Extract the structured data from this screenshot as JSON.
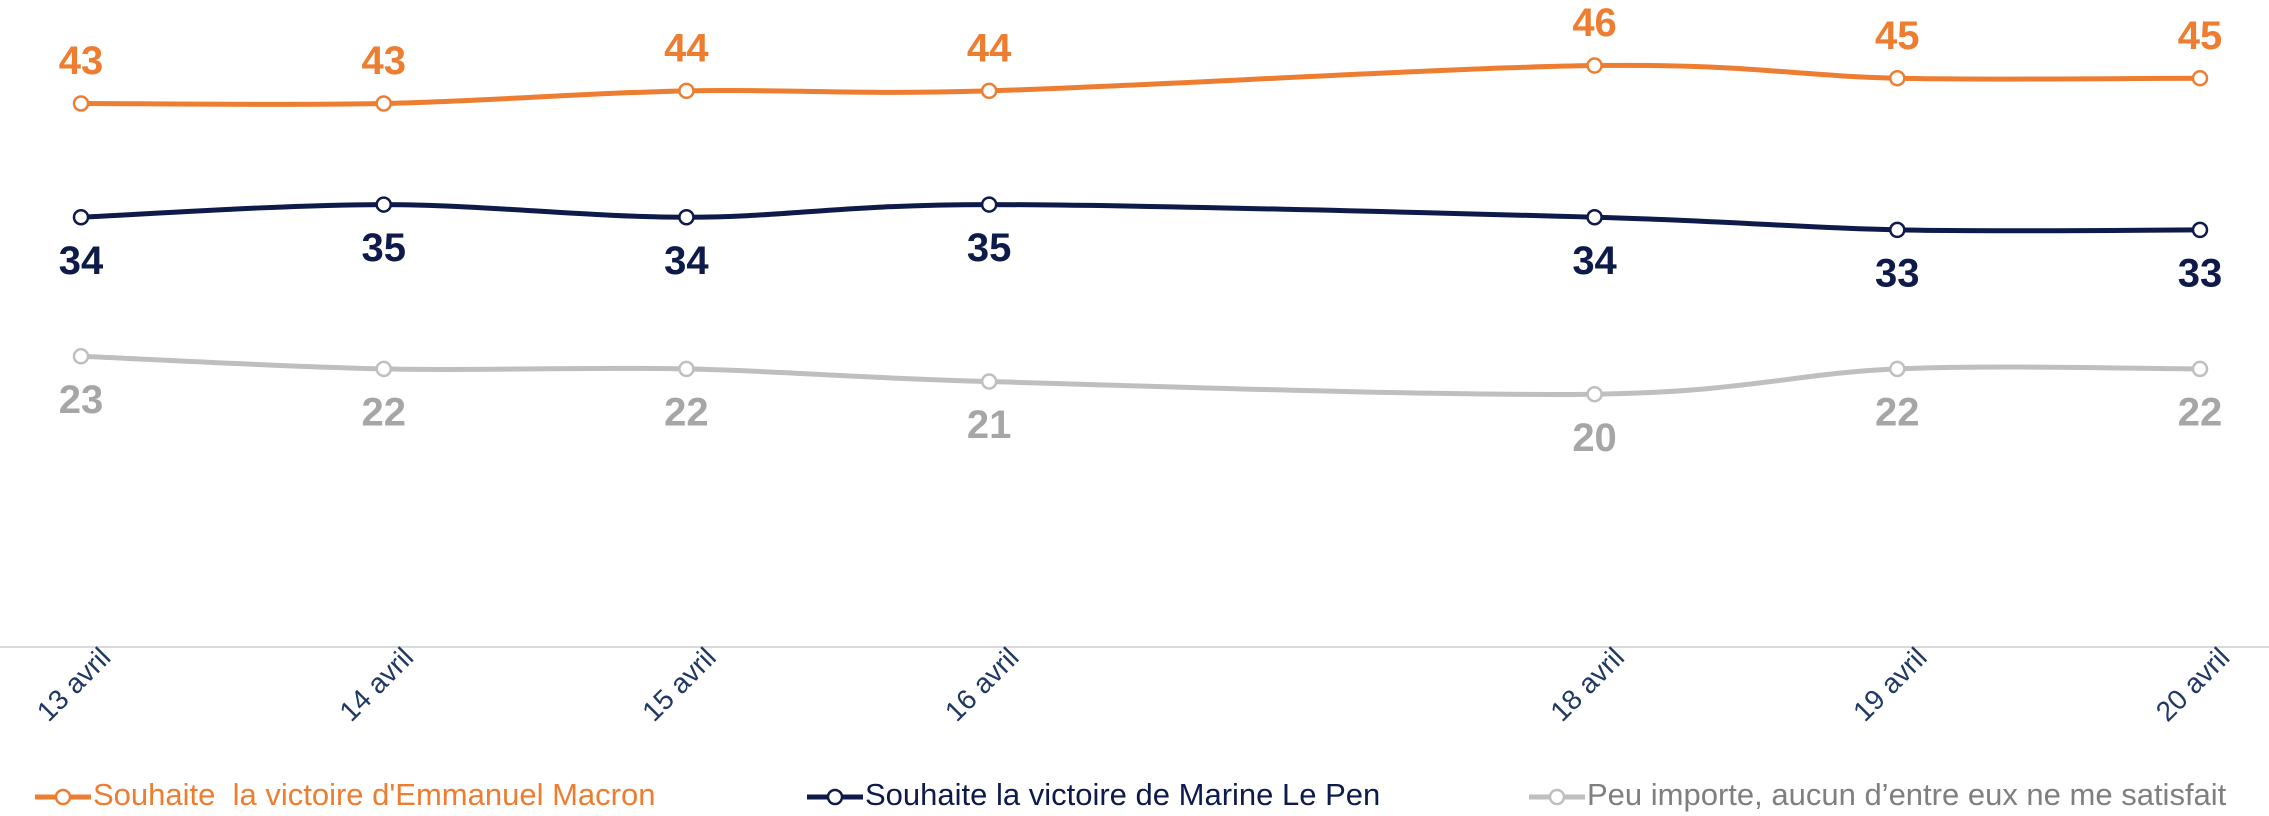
{
  "chart_data": {
    "type": "line",
    "x": [
      "13 avril",
      "14 avril",
      "15 avril",
      "16 avril",
      "18 avril",
      "19 avril",
      "20 avril"
    ],
    "ylim": [
      0,
      50
    ],
    "series": [
      {
        "name": "Souhaite  la victoire d'Emmanuel Macron",
        "color": "#ed7d31",
        "label_color": "#ed7d31",
        "label_position": "above",
        "values": [
          43,
          43,
          44,
          44,
          46,
          45,
          45
        ]
      },
      {
        "name": "Souhaite la victoire de Marine Le Pen",
        "color": "#0d1a4a",
        "label_color": "#0d1a4a",
        "label_position": "below",
        "values": [
          34,
          35,
          34,
          35,
          34,
          33,
          33
        ]
      },
      {
        "name": "Peu importe, aucun d’entre eux ne me satisfait",
        "color": "#bfbfbf",
        "label_color": "#a6a6a6",
        "label_position": "below",
        "values": [
          23,
          22,
          22,
          21,
          20,
          22,
          22
        ]
      }
    ]
  }
}
